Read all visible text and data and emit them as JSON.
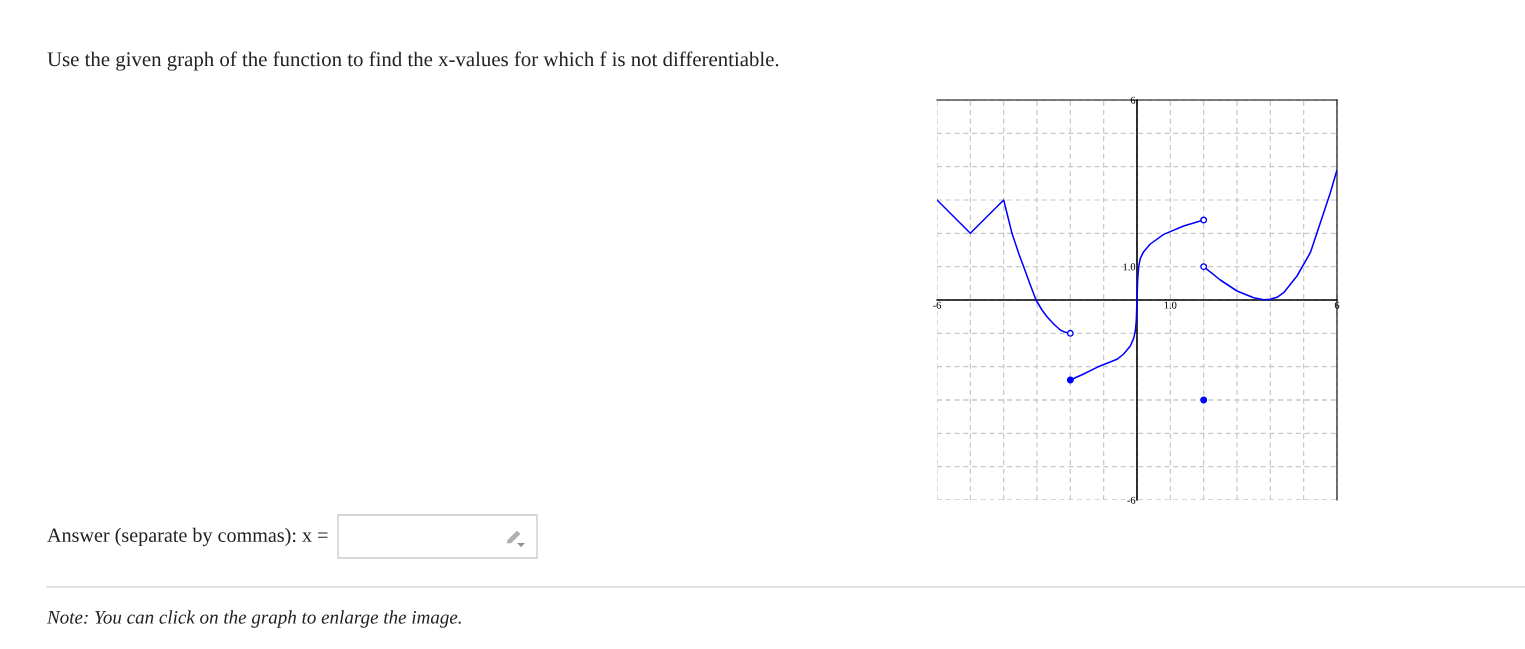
{
  "chart_data": {
    "type": "line",
    "title": "Use the given graph of the function to find the x-values for which f is not differentiable.",
    "annotations": [
      "Answer (separate by commas): x =",
      "Note: You can click on the graph to enlarge the image."
    ],
    "xlim": [
      -6,
      6
    ],
    "ylim": [
      -6,
      6
    ],
    "xticks": [
      -6,
      {
        "value": -5,
        "label": null
      },
      {
        "value": -4,
        "label": null
      },
      {
        "value": -3,
        "label": null
      },
      {
        "value": -2,
        "label": null
      },
      {
        "value": -1,
        "label": null
      },
      {
        "value": 0,
        "label": null
      },
      {
        "value": 1,
        "label": "1.0"
      },
      {
        "value": 2,
        "label": null
      },
      {
        "value": 3,
        "label": null
      },
      {
        "value": 4,
        "label": null
      },
      {
        "value": 5,
        "label": null
      },
      6
    ],
    "yticks": [
      -6,
      {
        "value": -5,
        "label": null
      },
      {
        "value": -4,
        "label": null
      },
      {
        "value": -3,
        "label": null
      },
      {
        "value": -2,
        "label": null
      },
      {
        "value": -1,
        "label": null
      },
      {
        "value": 0,
        "label": null
      },
      {
        "value": 1,
        "label": "1.0"
      },
      {
        "value": 2,
        "label": null
      },
      {
        "value": 3,
        "label": null
      },
      {
        "value": 4,
        "label": null
      },
      {
        "value": 5,
        "label": null
      },
      6
    ],
    "grid": true,
    "line_style": "solid",
    "marker": "none",
    "series": [
      {
        "color": "#0000ff",
        "x": [
          -6,
          -5,
          -4,
          -3.75,
          -3.55,
          -3.4,
          -3.2,
          -3.03,
          -2.85,
          -2.7,
          -2.5,
          -2.3,
          -2.15,
          -2
        ],
        "values": [
          3,
          2,
          3,
          2,
          1.4,
          1,
          0.45,
          0,
          -0.3,
          -0.5,
          -0.72,
          -0.9,
          -0.97,
          -1
        ]
      },
      {
        "color": "#0000ff",
        "x": [
          -2,
          -1.6,
          -1.2,
          -0.9,
          -0.6,
          -0.4,
          -0.2,
          -0.1,
          -0.05,
          -0.02,
          0,
          0.02,
          0.05,
          0.1,
          0.2,
          0.4,
          0.8,
          1.4,
          2
        ],
        "values": [
          -2.4,
          -2.22,
          -2.02,
          -1.9,
          -1.78,
          -1.62,
          -1.38,
          -1.15,
          -0.93,
          -0.6,
          0,
          0.6,
          1,
          1.25,
          1.45,
          1.68,
          1.97,
          2.22,
          2.4
        ]
      },
      {
        "color": "#0000ff",
        "x": [
          2,
          2.5,
          3,
          3.5,
          3.8,
          4,
          4.2,
          4.4,
          4.8,
          5.2,
          5.6,
          5.8,
          6
        ],
        "values": [
          1,
          0.6,
          0.27,
          0.07,
          0.01,
          0.02,
          0.08,
          0.22,
          0.72,
          1.42,
          2.62,
          3.22,
          3.9
        ]
      },
      {
        "type": "scatter",
        "color": "#0000ff",
        "colors": [
          "#ffffff",
          "#ffffff",
          "#ffffff"
        ],
        "marker": "circle",
        "x": [
          -2,
          2,
          2
        ],
        "values": [
          -1,
          2.4,
          1
        ]
      },
      {
        "type": "scatter",
        "color": "#0000ff",
        "marker": "circle",
        "x": [
          -2,
          2
        ],
        "values": [
          -2.4,
          -3
        ]
      }
    ]
  }
}
